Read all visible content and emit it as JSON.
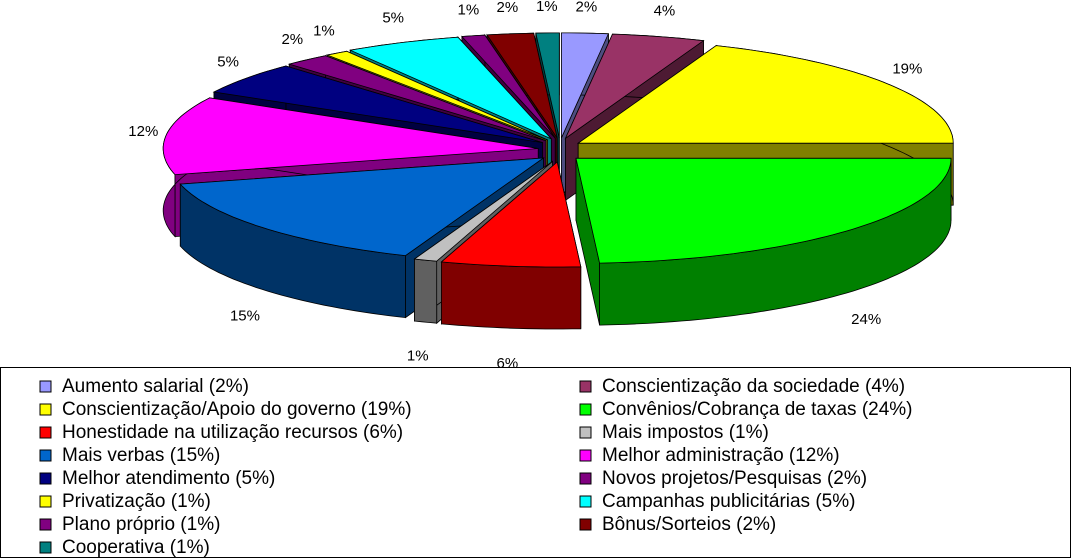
{
  "chart_data": {
    "type": "pie",
    "categories": [
      "Aumento salarial (2%)",
      "Conscientização da sociedade (4%)",
      "Conscientização/Apoio do governo (19%)",
      "Convênios/Cobrança de taxas (24%)",
      "Honestidade na utilização recursos (6%)",
      "Mais impostos (1%)",
      "Mais verbas (15%)",
      "Melhor administração (12%)",
      "Melhor atendimento (5%)",
      "Novos projetos/Pesquisas (2%)",
      "Privatização (1%)",
      "Campanhas publicitárias (5%)",
      "Plano próprio (1%)",
      "Bônus/Sorteios (2%)",
      "Cooperativa (1%)"
    ],
    "values": [
      2,
      4,
      19,
      24,
      6,
      1,
      15,
      12,
      5,
      2,
      1,
      5,
      1,
      2,
      1
    ],
    "value_labels": [
      "2%",
      "4%",
      "19%",
      "24%",
      "6%",
      "1%",
      "15%",
      "12%",
      "5%",
      "2%",
      "1%",
      "5%",
      "1%",
      "2%",
      "1%"
    ],
    "colors": [
      "#9999ff",
      "#993366",
      "#ffff00",
      "#00ff00",
      "#ff0000",
      "#c0c0c0",
      "#0066cc",
      "#ff00ff",
      "#000080",
      "#800080",
      "#ffff00",
      "#00ffff",
      "#800080",
      "#800000",
      "#008080"
    ],
    "legend": "bottom"
  }
}
